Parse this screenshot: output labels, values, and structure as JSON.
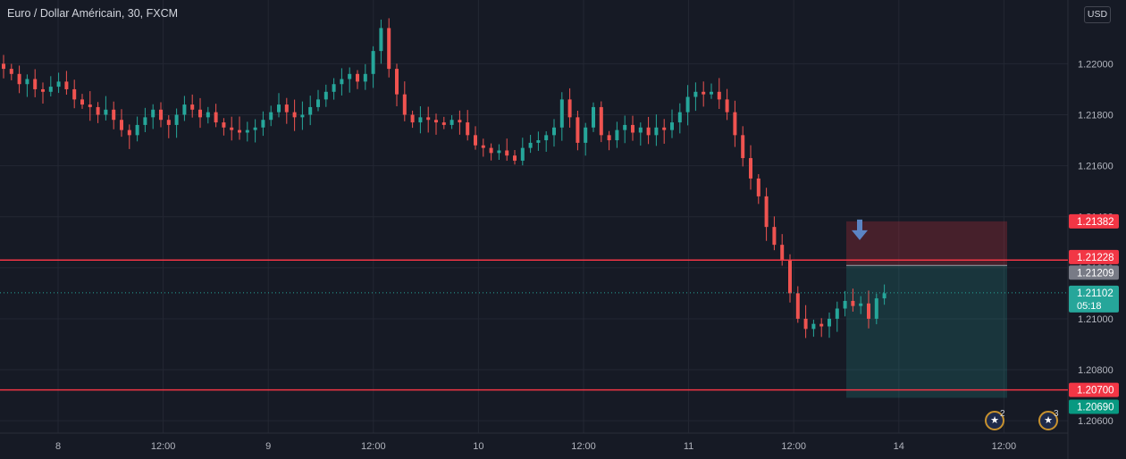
{
  "header": {
    "title": "Euro / Dollar Américain, 30, FXCM",
    "currency": "USD"
  },
  "events": {
    "eu_count": "2",
    "us_count": "3"
  },
  "colors": {
    "background": "#161a25",
    "grid": "#232733",
    "up": "#26a69a",
    "down": "#ef5350",
    "line": "#f23645",
    "arrow": "#5b84c4"
  },
  "chart_data": {
    "type": "candlestick",
    "title": "Euro / Dollar Américain, 30, FXCM",
    "ylim": [
      1.2045,
      1.2225
    ],
    "y_ticks": [
      "1.22000",
      "1.21800",
      "1.21600",
      "1.21400",
      "1.21200",
      "1.21000",
      "1.20800",
      "1.20600"
    ],
    "x_ticks": [
      "8",
      "12:00",
      "9",
      "12:00",
      "10",
      "12:00",
      "11",
      "12:00",
      "14",
      "12:00"
    ],
    "horizontal_lines": [
      1.21209,
      1.207
    ],
    "last_price": "1.21102",
    "countdown": "05:18",
    "price_labels": [
      {
        "text": "1.21382",
        "kind": "stop"
      },
      {
        "text": "1.21228",
        "kind": "stop"
      },
      {
        "text": "1.21209",
        "kind": "entry"
      },
      {
        "text": "1.21102",
        "kind": "last"
      },
      {
        "text": "1.20700",
        "kind": "line"
      },
      {
        "text": "1.20690",
        "kind": "target"
      }
    ],
    "position": {
      "direction": "short",
      "entry": 1.21209,
      "stop": 1.21382,
      "target": 1.2069
    },
    "price_path": [
      1.2198,
      1.2196,
      1.2192,
      1.2194,
      1.219,
      1.2189,
      1.2191,
      1.2193,
      1.219,
      1.2186,
      1.2184,
      1.2183,
      1.218,
      1.2182,
      1.2178,
      1.2174,
      1.2172,
      1.2176,
      1.2179,
      1.2182,
      1.2178,
      1.2176,
      1.218,
      1.2184,
      1.2182,
      1.2179,
      1.2181,
      1.2177,
      1.2175,
      1.2174,
      1.2173,
      1.2174,
      1.2175,
      1.2178,
      1.2181,
      1.2184,
      1.2181,
      1.2179,
      1.218,
      1.2183,
      1.2186,
      1.2189,
      1.2192,
      1.2194,
      1.2196,
      1.2193,
      1.2196,
      1.2205,
      1.2214,
      1.2198,
      1.2188,
      1.218,
      1.2177,
      1.2179,
      1.2178,
      1.2177,
      1.2176,
      1.2178,
      1.2177,
      1.2172,
      1.2168,
      1.2167,
      1.2165,
      1.2166,
      1.2164,
      1.2162,
      1.2167,
      1.2169,
      1.217,
      1.2172,
      1.2175,
      1.2186,
      1.2179,
      1.2169,
      1.2175,
      1.2183,
      1.2172,
      1.217,
      1.2174,
      1.2176,
      1.2173,
      1.2175,
      1.2172,
      1.2175,
      1.2174,
      1.2177,
      1.2181,
      1.2187,
      1.2189,
      1.2188,
      1.2189,
      1.2186,
      1.2181,
      1.2172,
      1.2163,
      1.2155,
      1.2148,
      1.2136,
      1.2129,
      1.2123,
      1.211,
      1.21,
      1.2096,
      1.2098,
      1.2097,
      1.21,
      1.2104,
      1.2107,
      1.2105,
      1.2106,
      1.21,
      1.2108,
      1.211
    ]
  }
}
